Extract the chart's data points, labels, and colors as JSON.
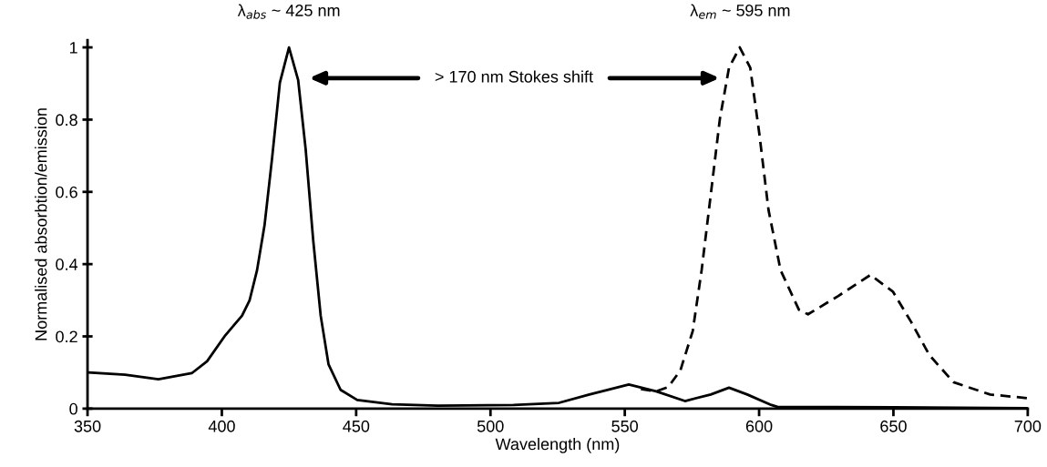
{
  "chart_data": {
    "type": "line",
    "xlabel": "Wavelength (nm)",
    "ylabel": "Normalised absorbtion/emission",
    "xlim": [
      350,
      700
    ],
    "xticks": [
      350,
      400,
      450,
      500,
      550,
      600,
      650,
      700
    ],
    "ylim": [
      0,
      1.02
    ],
    "yticks": [
      0,
      0.2,
      0.4,
      0.6,
      0.8,
      1
    ],
    "grid": false,
    "marker": "none",
    "series": [
      {
        "color": "#000000",
        "line_style": "solid",
        "x": [
          350.4,
          364,
          376.4,
          388.8,
          394.5,
          401.3,
          407.5,
          410.3,
          413.1,
          415.9,
          418.7,
          421.6,
          425,
          428.4,
          431.2,
          434,
          436.8,
          439.7,
          444.2,
          450.4,
          463.4,
          480.3,
          508.6,
          525.5,
          536.8,
          551.5,
          561.7,
          572.4,
          582,
          588.8,
          595.6,
          604.6,
          606.8,
          650,
          700
        ],
        "values": [
          0.1,
          0.094,
          0.081,
          0.098,
          0.131,
          0.203,
          0.257,
          0.299,
          0.383,
          0.508,
          0.693,
          0.902,
          1.0,
          0.91,
          0.718,
          0.467,
          0.257,
          0.123,
          0.052,
          0.024,
          0.012,
          0.008,
          0.01,
          0.016,
          0.039,
          0.067,
          0.048,
          0.021,
          0.039,
          0.058,
          0.039,
          0.01,
          0.005,
          0.004,
          0.001
        ]
      },
      {
        "color": "#000000",
        "line_style": "dashed",
        "x": [
          556,
          561.7,
          566.2,
          570.7,
          575.3,
          578.6,
          582,
          585.4,
          588.8,
          592.8,
          596.7,
          600.1,
          603.5,
          608,
          614.8,
          618.2,
          629.5,
          641.4,
          649.8,
          656.6,
          663.4,
          672.4,
          686,
          700
        ],
        "values": [
          0.054,
          0.048,
          0.06,
          0.106,
          0.215,
          0.383,
          0.592,
          0.802,
          0.944,
          1.0,
          0.944,
          0.76,
          0.55,
          0.383,
          0.274,
          0.261,
          0.312,
          0.37,
          0.324,
          0.24,
          0.148,
          0.073,
          0.039,
          0.029
        ]
      }
    ],
    "annotations": [
      {
        "text": "λ$_{abs}$ ~ 425 nm",
        "x": 425,
        "y": 1
      },
      {
        "text": "λ$_{em}$ ~ 595 nm",
        "x": 593,
        "y": 1
      },
      "> 170 nm Stokes shift"
    ]
  }
}
